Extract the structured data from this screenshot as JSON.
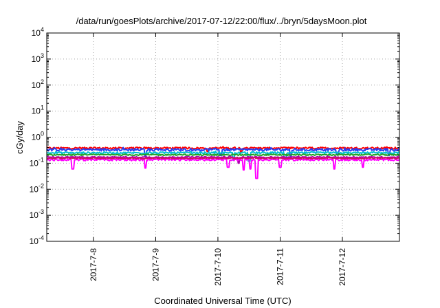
{
  "chart_data": {
    "type": "line",
    "title": "/data/run/goesPlots/archive/2017-07-12/22:00/flux/../bryn/5daysMoon.plot",
    "xlabel": "Coordinated Universal Time (UTC)",
    "ylabel": "cGy/day",
    "yscale": "log",
    "ylim": [
      0.0001,
      10000
    ],
    "xlim": [
      "2017-07-07 06:00",
      "2017-07-12 22:00"
    ],
    "grid": true,
    "x_ticks": [
      "2017-7-8",
      "2017-7-9",
      "2017-7-10",
      "2017-7-11",
      "2017-7-12"
    ],
    "y_ticks": [
      {
        "base": "10",
        "exp": "-4"
      },
      {
        "base": "10",
        "exp": "-3"
      },
      {
        "base": "10",
        "exp": "-2"
      },
      {
        "base": "10",
        "exp": "-1"
      },
      {
        "base": "10",
        "exp": "0"
      },
      {
        "base": "10",
        "exp": "1"
      },
      {
        "base": "10",
        "exp": "2"
      },
      {
        "base": "10",
        "exp": "3"
      },
      {
        "base": "10",
        "exp": "4"
      }
    ],
    "series": [
      {
        "color": "#ff0000",
        "level": 0.38,
        "noise": 0.1,
        "dips": [
          [
            "2017-07-09 20:00",
            0.28
          ],
          [
            "2017-07-10 09:00",
            0.26
          ]
        ]
      },
      {
        "color": "#2a3cf0",
        "level": 0.33,
        "noise": 0.14,
        "dips": [
          [
            "2017-07-08 20:00",
            0.18
          ],
          [
            "2017-07-10 01:00",
            0.2
          ],
          [
            "2017-07-11 04:00",
            0.17
          ],
          [
            "2017-07-11 22:00",
            0.22
          ],
          [
            "2017-07-12 18:00",
            0.2
          ]
        ]
      },
      {
        "color": "#00c0d0",
        "level": 0.25,
        "noise": 0.1,
        "dips": [
          [
            "2017-07-10 06:00",
            0.13
          ],
          [
            "2017-07-10 12:00",
            0.12
          ],
          [
            "2017-07-11 02:00",
            0.14
          ]
        ]
      },
      {
        "color": "#20a020",
        "level": 0.21,
        "noise": 0.07,
        "dips": []
      },
      {
        "color": "#b000b0",
        "level": 0.17,
        "noise": 0.07,
        "dips": [
          [
            "2017-07-10 08:00",
            0.1
          ]
        ]
      },
      {
        "color": "#ff00ff",
        "level": 0.135,
        "noise": 0.1,
        "dips": [
          [
            "2017-07-07 16:00",
            0.06
          ],
          [
            "2017-07-08 20:00",
            0.065
          ],
          [
            "2017-07-10 04:00",
            0.07
          ],
          [
            "2017-07-10 10:00",
            0.055
          ],
          [
            "2017-07-10 12:30",
            0.06
          ],
          [
            "2017-07-10 15:00",
            0.026
          ],
          [
            "2017-07-11 00:00",
            0.07
          ],
          [
            "2017-07-11 21:00",
            0.06
          ],
          [
            "2017-07-12 08:00",
            0.07
          ]
        ]
      },
      {
        "color": "#d01060",
        "level": 0.155,
        "noise": 0.06,
        "dips": []
      }
    ]
  }
}
